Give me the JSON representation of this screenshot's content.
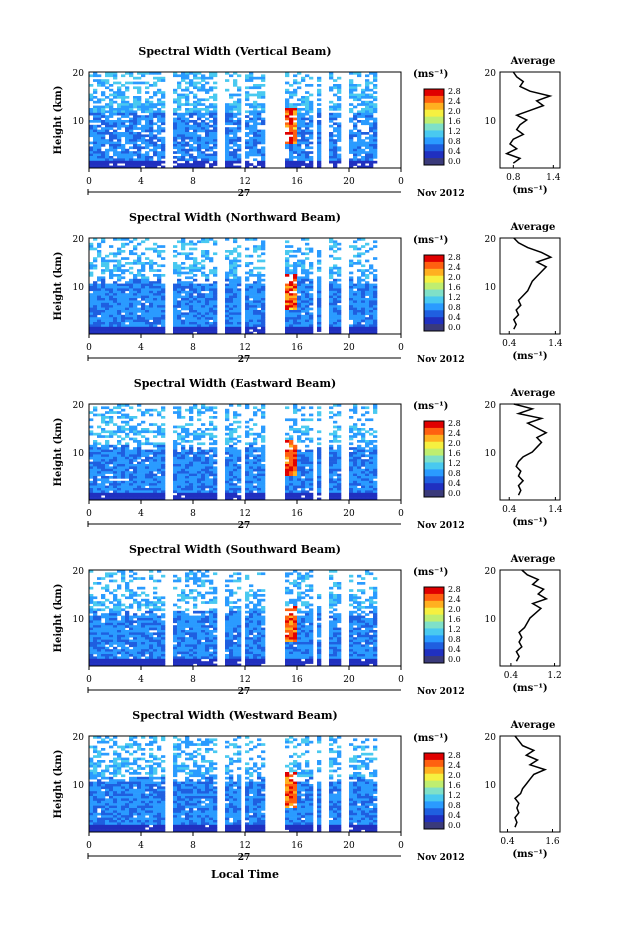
{
  "chart_data": {
    "type": "heatmap",
    "date_label": "27",
    "month_label": "Nov 2012",
    "xlabel": "Local Time",
    "ylabel": "Height (km)",
    "x_ticks": [
      "0",
      "4",
      "8",
      "12",
      "16",
      "20",
      "0"
    ],
    "y_ticks": [
      "20",
      "10"
    ],
    "colorbar": {
      "unit": "(ms⁻¹)",
      "labels": [
        "2.8",
        "2.4",
        "2.0",
        "1.6",
        "1.2",
        "0.8",
        "0.4",
        "0.0"
      ],
      "colors": [
        "#3a3a7a",
        "#2030c0",
        "#1f5fe0",
        "#2a9bff",
        "#49c9f0",
        "#7fe0c8",
        "#bfee70",
        "#f6f040",
        "#ffb020",
        "#ff6010",
        "#e00000"
      ]
    },
    "data_gaps_hours": [
      [
        5.7,
        6.2
      ],
      [
        9.6,
        10.2
      ],
      [
        11.6,
        12.0
      ],
      [
        13.3,
        15.0
      ],
      [
        17.0,
        17.4
      ],
      [
        17.8,
        18.2
      ],
      [
        19.3,
        19.9
      ],
      [
        22.0,
        24.0
      ]
    ],
    "panels": [
      {
        "title": "Spectral Width (Vertical Beam)",
        "avg_title": "Average",
        "avg_xlabel": "(ms⁻¹)",
        "avg_xticks": [
          "0.8",
          "1.4"
        ],
        "avg_xlim": [
          0.6,
          1.5
        ],
        "avg_profile": [
          [
            0.8,
            1
          ],
          [
            0.9,
            2
          ],
          [
            0.7,
            3
          ],
          [
            0.85,
            4
          ],
          [
            0.75,
            5
          ],
          [
            0.8,
            6
          ],
          [
            0.95,
            7
          ],
          [
            0.85,
            8
          ],
          [
            0.9,
            9
          ],
          [
            1.0,
            10
          ],
          [
            0.85,
            11
          ],
          [
            1.05,
            12
          ],
          [
            1.25,
            13
          ],
          [
            1.15,
            14
          ],
          [
            1.35,
            15
          ],
          [
            1.05,
            16
          ],
          [
            0.9,
            17
          ],
          [
            0.95,
            18
          ],
          [
            0.85,
            19
          ],
          [
            0.8,
            20
          ]
        ]
      },
      {
        "title": "Spectral Width (Northward Beam)",
        "avg_title": "Average",
        "avg_xlabel": "(ms⁻¹)",
        "avg_xticks": [
          "0.4",
          "1.4"
        ],
        "avg_xlim": [
          0.2,
          1.5
        ],
        "avg_profile": [
          [
            0.5,
            1
          ],
          [
            0.55,
            2
          ],
          [
            0.5,
            3
          ],
          [
            0.6,
            4
          ],
          [
            0.55,
            5
          ],
          [
            0.65,
            6
          ],
          [
            0.6,
            7
          ],
          [
            0.7,
            8
          ],
          [
            0.8,
            9
          ],
          [
            0.85,
            10
          ],
          [
            0.9,
            11
          ],
          [
            1.0,
            12
          ],
          [
            1.1,
            13
          ],
          [
            1.2,
            14
          ],
          [
            1.0,
            15
          ],
          [
            1.3,
            16
          ],
          [
            1.1,
            17
          ],
          [
            0.8,
            18
          ],
          [
            0.6,
            19
          ],
          [
            0.5,
            20
          ]
        ]
      },
      {
        "title": "Spectral Width (Eastward Beam)",
        "avg_title": "Average",
        "avg_xlabel": "(ms⁻¹)",
        "avg_xticks": [
          "0.4",
          "1.4"
        ],
        "avg_xlim": [
          0.2,
          1.5
        ],
        "avg_profile": [
          [
            0.6,
            1
          ],
          [
            0.65,
            2
          ],
          [
            0.6,
            3
          ],
          [
            0.7,
            4
          ],
          [
            0.6,
            5
          ],
          [
            0.65,
            6
          ],
          [
            0.55,
            7
          ],
          [
            0.6,
            8
          ],
          [
            0.7,
            9
          ],
          [
            0.9,
            10
          ],
          [
            1.0,
            11
          ],
          [
            1.1,
            12
          ],
          [
            1.0,
            13
          ],
          [
            1.2,
            14
          ],
          [
            1.0,
            15
          ],
          [
            0.8,
            16
          ],
          [
            1.1,
            17
          ],
          [
            0.6,
            18
          ],
          [
            0.9,
            19
          ],
          [
            0.5,
            20
          ]
        ]
      },
      {
        "title": "Spectral Width (Southward Beam)",
        "avg_title": "Average",
        "avg_xlabel": "(ms⁻¹)",
        "avg_xticks": [
          "0.4",
          "1.2"
        ],
        "avg_xlim": [
          0.2,
          1.3
        ],
        "avg_profile": [
          [
            0.5,
            1
          ],
          [
            0.55,
            2
          ],
          [
            0.5,
            3
          ],
          [
            0.6,
            4
          ],
          [
            0.55,
            5
          ],
          [
            0.6,
            6
          ],
          [
            0.55,
            7
          ],
          [
            0.65,
            8
          ],
          [
            0.7,
            9
          ],
          [
            0.75,
            10
          ],
          [
            0.85,
            11
          ],
          [
            0.95,
            12
          ],
          [
            0.8,
            13
          ],
          [
            1.05,
            14
          ],
          [
            0.9,
            15
          ],
          [
            1.0,
            16
          ],
          [
            0.8,
            17
          ],
          [
            0.9,
            18
          ],
          [
            0.7,
            19
          ],
          [
            0.6,
            20
          ]
        ]
      },
      {
        "title": "Spectral Width (Westward Beam)",
        "avg_title": "Average",
        "avg_xlabel": "(ms⁻¹)",
        "avg_xticks": [
          "0.4",
          "1.6"
        ],
        "avg_xlim": [
          0.2,
          1.8
        ],
        "avg_profile": [
          [
            0.6,
            1
          ],
          [
            0.65,
            2
          ],
          [
            0.6,
            3
          ],
          [
            0.7,
            4
          ],
          [
            0.65,
            5
          ],
          [
            0.7,
            6
          ],
          [
            0.6,
            7
          ],
          [
            0.75,
            8
          ],
          [
            0.8,
            9
          ],
          [
            0.9,
            10
          ],
          [
            1.0,
            11
          ],
          [
            1.1,
            12
          ],
          [
            1.4,
            13
          ],
          [
            1.0,
            14
          ],
          [
            1.2,
            15
          ],
          [
            0.9,
            16
          ],
          [
            1.1,
            17
          ],
          [
            0.8,
            18
          ],
          [
            0.7,
            19
          ],
          [
            0.6,
            20
          ]
        ]
      }
    ]
  }
}
